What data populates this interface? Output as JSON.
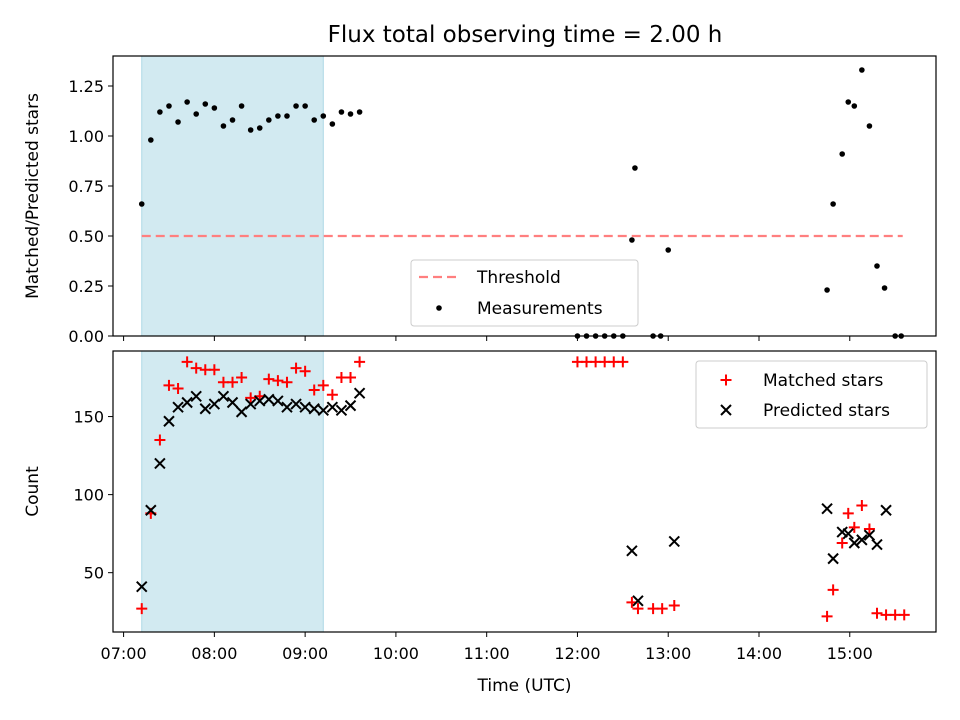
{
  "figure": {
    "title": "Flux total observing time = 2.00 h"
  },
  "colors": {
    "shade": "#add8e6",
    "threshold": "#ff7f7f",
    "measurement": "#000000",
    "matched": "#ff0000",
    "predicted": "#000000"
  },
  "chart_data": [
    {
      "type": "scatter",
      "panel": "top",
      "title": "Flux total observing time = 2.00 h",
      "xlabel": "",
      "ylabel": "Matched/Predicted stars",
      "xlim": [
        "06:53",
        "15:57"
      ],
      "ylim": [
        0,
        1.4
      ],
      "x_ticks": [
        "07:00",
        "08:00",
        "09:00",
        "10:00",
        "11:00",
        "12:00",
        "13:00",
        "14:00",
        "15:00"
      ],
      "y_ticks": [
        "0.00",
        "0.25",
        "0.50",
        "0.75",
        "1.00",
        "1.25"
      ],
      "shaded_span": [
        "07:12",
        "09:12"
      ],
      "threshold": {
        "name": "Threshold",
        "y": 0.5,
        "x_range": [
          "07:12",
          "15:35"
        ]
      },
      "legend_position": "lower center",
      "series": [
        {
          "name": "Measurements",
          "marker": "dot",
          "points": [
            [
              "07:12",
              0.66
            ],
            [
              "07:18",
              0.98
            ],
            [
              "07:24",
              1.12
            ],
            [
              "07:30",
              1.15
            ],
            [
              "07:36",
              1.07
            ],
            [
              "07:42",
              1.17
            ],
            [
              "07:48",
              1.11
            ],
            [
              "07:54",
              1.16
            ],
            [
              "08:00",
              1.14
            ],
            [
              "08:06",
              1.05
            ],
            [
              "08:12",
              1.08
            ],
            [
              "08:18",
              1.15
            ],
            [
              "08:24",
              1.03
            ],
            [
              "08:30",
              1.04
            ],
            [
              "08:36",
              1.08
            ],
            [
              "08:42",
              1.1
            ],
            [
              "08:48",
              1.1
            ],
            [
              "08:54",
              1.15
            ],
            [
              "09:00",
              1.15
            ],
            [
              "09:06",
              1.08
            ],
            [
              "09:12",
              1.1
            ],
            [
              "09:18",
              1.06
            ],
            [
              "09:24",
              1.12
            ],
            [
              "09:30",
              1.11
            ],
            [
              "09:36",
              1.12
            ],
            [
              "12:00",
              0.0
            ],
            [
              "12:06",
              0.0
            ],
            [
              "12:12",
              0.0
            ],
            [
              "12:18",
              0.0
            ],
            [
              "12:24",
              0.0
            ],
            [
              "12:30",
              0.0
            ],
            [
              "12:36",
              0.48
            ],
            [
              "12:38",
              0.84
            ],
            [
              "12:50",
              0.0
            ],
            [
              "12:55",
              0.0
            ],
            [
              "13:00",
              0.43
            ],
            [
              "14:45",
              0.23
            ],
            [
              "14:49",
              0.66
            ],
            [
              "14:55",
              0.91
            ],
            [
              "14:59",
              1.17
            ],
            [
              "15:03",
              1.15
            ],
            [
              "15:08",
              1.33
            ],
            [
              "15:13",
              1.05
            ],
            [
              "15:18",
              0.35
            ],
            [
              "15:23",
              0.24
            ],
            [
              "15:30",
              0.0
            ],
            [
              "15:34",
              0.0
            ]
          ]
        }
      ]
    },
    {
      "type": "scatter",
      "panel": "bottom",
      "xlabel": "Time (UTC)",
      "ylabel": "Count",
      "xlim": [
        "06:53",
        "15:57"
      ],
      "ylim": [
        12,
        192
      ],
      "x_ticks": [
        "07:00",
        "08:00",
        "09:00",
        "10:00",
        "11:00",
        "12:00",
        "13:00",
        "14:00",
        "15:00"
      ],
      "y_ticks": [
        "50",
        "100",
        "150"
      ],
      "shaded_span": [
        "07:12",
        "09:12"
      ],
      "legend_position": "upper right",
      "series": [
        {
          "name": "Matched stars",
          "marker": "plus",
          "points": [
            [
              "07:12",
              27
            ],
            [
              "07:18",
              88
            ],
            [
              "07:24",
              135
            ],
            [
              "07:30",
              170
            ],
            [
              "07:36",
              168
            ],
            [
              "07:42",
              185
            ],
            [
              "07:48",
              181
            ],
            [
              "07:54",
              180
            ],
            [
              "08:00",
              180
            ],
            [
              "08:06",
              172
            ],
            [
              "08:12",
              172
            ],
            [
              "08:18",
              175
            ],
            [
              "08:24",
              162
            ],
            [
              "08:30",
              163
            ],
            [
              "08:36",
              174
            ],
            [
              "08:42",
              173
            ],
            [
              "08:48",
              172
            ],
            [
              "08:54",
              181
            ],
            [
              "09:00",
              179
            ],
            [
              "09:06",
              167
            ],
            [
              "09:12",
              170
            ],
            [
              "09:18",
              164
            ],
            [
              "09:24",
              175
            ],
            [
              "09:30",
              175
            ],
            [
              "09:36",
              185
            ],
            [
              "12:00",
              185
            ],
            [
              "12:06",
              185
            ],
            [
              "12:12",
              185
            ],
            [
              "12:18",
              185
            ],
            [
              "12:24",
              185
            ],
            [
              "12:30",
              185
            ],
            [
              "12:36",
              31
            ],
            [
              "12:40",
              27
            ],
            [
              "12:50",
              27
            ],
            [
              "12:56",
              27
            ],
            [
              "13:04",
              29
            ],
            [
              "14:45",
              22
            ],
            [
              "14:49",
              39
            ],
            [
              "14:55",
              69
            ],
            [
              "14:59",
              88
            ],
            [
              "15:03",
              79
            ],
            [
              "15:08",
              93
            ],
            [
              "15:13",
              78
            ],
            [
              "15:18",
              24
            ],
            [
              "15:24",
              23
            ],
            [
              "15:30",
              23
            ],
            [
              "15:36",
              23
            ]
          ]
        },
        {
          "name": "Predicted stars",
          "marker": "x",
          "points": [
            [
              "07:12",
              41
            ],
            [
              "07:18",
              90
            ],
            [
              "07:24",
              120
            ],
            [
              "07:30",
              147
            ],
            [
              "07:36",
              156
            ],
            [
              "07:42",
              159
            ],
            [
              "07:48",
              163
            ],
            [
              "07:54",
              155
            ],
            [
              "08:00",
              158
            ],
            [
              "08:06",
              163
            ],
            [
              "08:12",
              159
            ],
            [
              "08:18",
              153
            ],
            [
              "08:24",
              158
            ],
            [
              "08:30",
              160
            ],
            [
              "08:36",
              161
            ],
            [
              "08:42",
              160
            ],
            [
              "08:48",
              156
            ],
            [
              "08:54",
              158
            ],
            [
              "09:00",
              156
            ],
            [
              "09:06",
              155
            ],
            [
              "09:12",
              154
            ],
            [
              "09:18",
              156
            ],
            [
              "09:24",
              154
            ],
            [
              "09:30",
              157
            ],
            [
              "09:36",
              165
            ],
            [
              "12:36",
              64
            ],
            [
              "12:40",
              32
            ],
            [
              "13:04",
              70
            ],
            [
              "14:45",
              91
            ],
            [
              "14:49",
              59
            ],
            [
              "14:55",
              76
            ],
            [
              "14:59",
              75
            ],
            [
              "15:03",
              69
            ],
            [
              "15:08",
              71
            ],
            [
              "15:13",
              74
            ],
            [
              "15:18",
              68
            ],
            [
              "15:24",
              90
            ]
          ]
        }
      ]
    }
  ]
}
